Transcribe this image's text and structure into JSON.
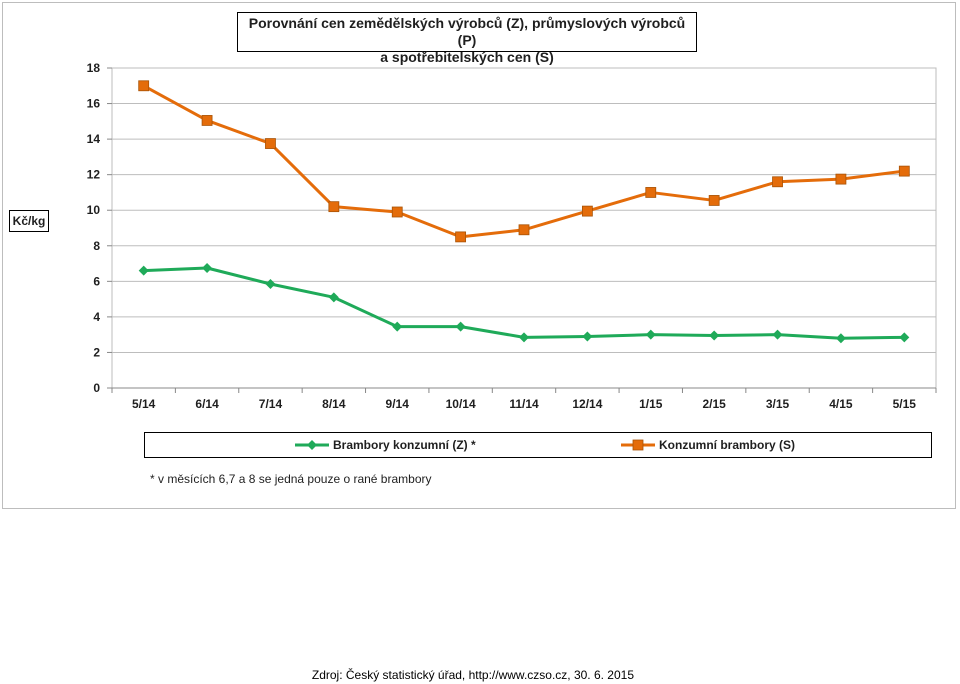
{
  "chart_data": {
    "type": "line",
    "title_line1": "Porovnání cen zemědělských výrobců (Z),  průmyslových výrobců (P)",
    "title_line2": "a spotřebitelských cen (S)",
    "ylabel": "Kč/kg",
    "ylim": [
      0,
      18
    ],
    "yticks": [
      0,
      2,
      4,
      6,
      8,
      10,
      12,
      14,
      16,
      18
    ],
    "grid": true,
    "legend_position": "bottom",
    "categories": [
      "5/14",
      "6/14",
      "7/14",
      "8/14",
      "9/14",
      "10/14",
      "11/14",
      "12/14",
      "1/15",
      "2/15",
      "3/15",
      "4/15",
      "5/15"
    ],
    "series": [
      {
        "name": "Brambory konzumní (Z) *",
        "color": "#1faa59",
        "marker": "diamond",
        "values": [
          6.6,
          6.75,
          5.85,
          5.1,
          3.45,
          3.45,
          2.85,
          2.9,
          3.0,
          2.95,
          3.0,
          2.8,
          2.85
        ]
      },
      {
        "name": "Konzumní brambory (S)",
        "color": "#e46c0a",
        "marker": "square",
        "values": [
          17.0,
          15.05,
          13.75,
          10.2,
          9.9,
          8.5,
          8.9,
          9.95,
          11.0,
          10.55,
          11.6,
          11.75,
          12.2
        ]
      }
    ],
    "footnote": "*  v měsících 6,7 a 8 se jedná pouze o rané brambory"
  },
  "source_text": "Zdroj: Český statistický úřad, http://www.czso.cz, 30. 6. 2015"
}
